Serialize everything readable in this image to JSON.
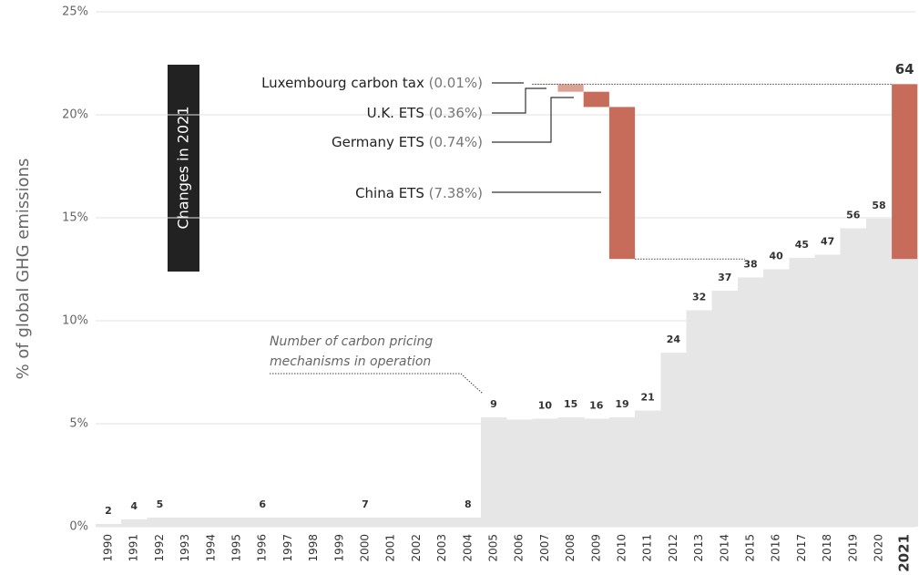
{
  "chart_data": {
    "type": "step-area-waterfall",
    "ylabel": "% of global GHG emissions",
    "categories": [
      "1990",
      "1991",
      "1992",
      "1993",
      "1994",
      "1995",
      "1996",
      "1997",
      "1998",
      "1999",
      "2000",
      "2001",
      "2002",
      "2003",
      "2004",
      "2005",
      "2006",
      "2007",
      "2008",
      "2009",
      "2010",
      "2011",
      "2012",
      "2013",
      "2014",
      "2015",
      "2016",
      "2017",
      "2018",
      "2019",
      "2020",
      "2021"
    ],
    "values": [
      0.13,
      0.35,
      0.44,
      0.45,
      0.45,
      0.45,
      0.45,
      0.45,
      0.45,
      0.44,
      0.44,
      0.44,
      0.44,
      0.45,
      0.45,
      5.3,
      5.2,
      5.25,
      5.3,
      5.25,
      5.3,
      5.65,
      8.45,
      10.5,
      11.45,
      12.1,
      12.5,
      13.05,
      13.2,
      14.5,
      14.95,
      13.0
    ],
    "color": "#e6e6e6",
    "counts": [
      2,
      4,
      5,
      null,
      null,
      null,
      6,
      null,
      null,
      null,
      7,
      null,
      null,
      null,
      8,
      9,
      null,
      10,
      15,
      16,
      19,
      21,
      24,
      32,
      37,
      38,
      40,
      45,
      47,
      56,
      58,
      64
    ],
    "ylim": [
      0,
      25
    ],
    "yticks": [
      {
        "value": 0,
        "label": "0%"
      },
      {
        "value": 5,
        "label": "5%"
      },
      {
        "value": 10,
        "label": "10%"
      },
      {
        "value": 15,
        "label": "15%"
      },
      {
        "value": 20,
        "label": "20%"
      },
      {
        "value": 25,
        "label": "25%"
      }
    ],
    "grid": true,
    "changes_title": "Changes in 2021",
    "changes": [
      {
        "name": "Luxembourg carbon tax",
        "value": 0.01,
        "value_label": "(0.01%)",
        "color": "#dba293"
      },
      {
        "name": "U.K. ETS",
        "value": 0.36,
        "value_label": "(0.36%)",
        "color": "#dba293"
      },
      {
        "name": "Germany ETS",
        "value": 0.74,
        "value_label": "(0.74%)",
        "color": "#c76b5a"
      },
      {
        "name": "China ETS",
        "value": 7.38,
        "value_label": "(7.38%)",
        "color": "#c76b5a"
      }
    ],
    "total_color": "#c76b5a",
    "annotation": [
      "Number of carbon pricing",
      "mechanisms in operation"
    ]
  }
}
